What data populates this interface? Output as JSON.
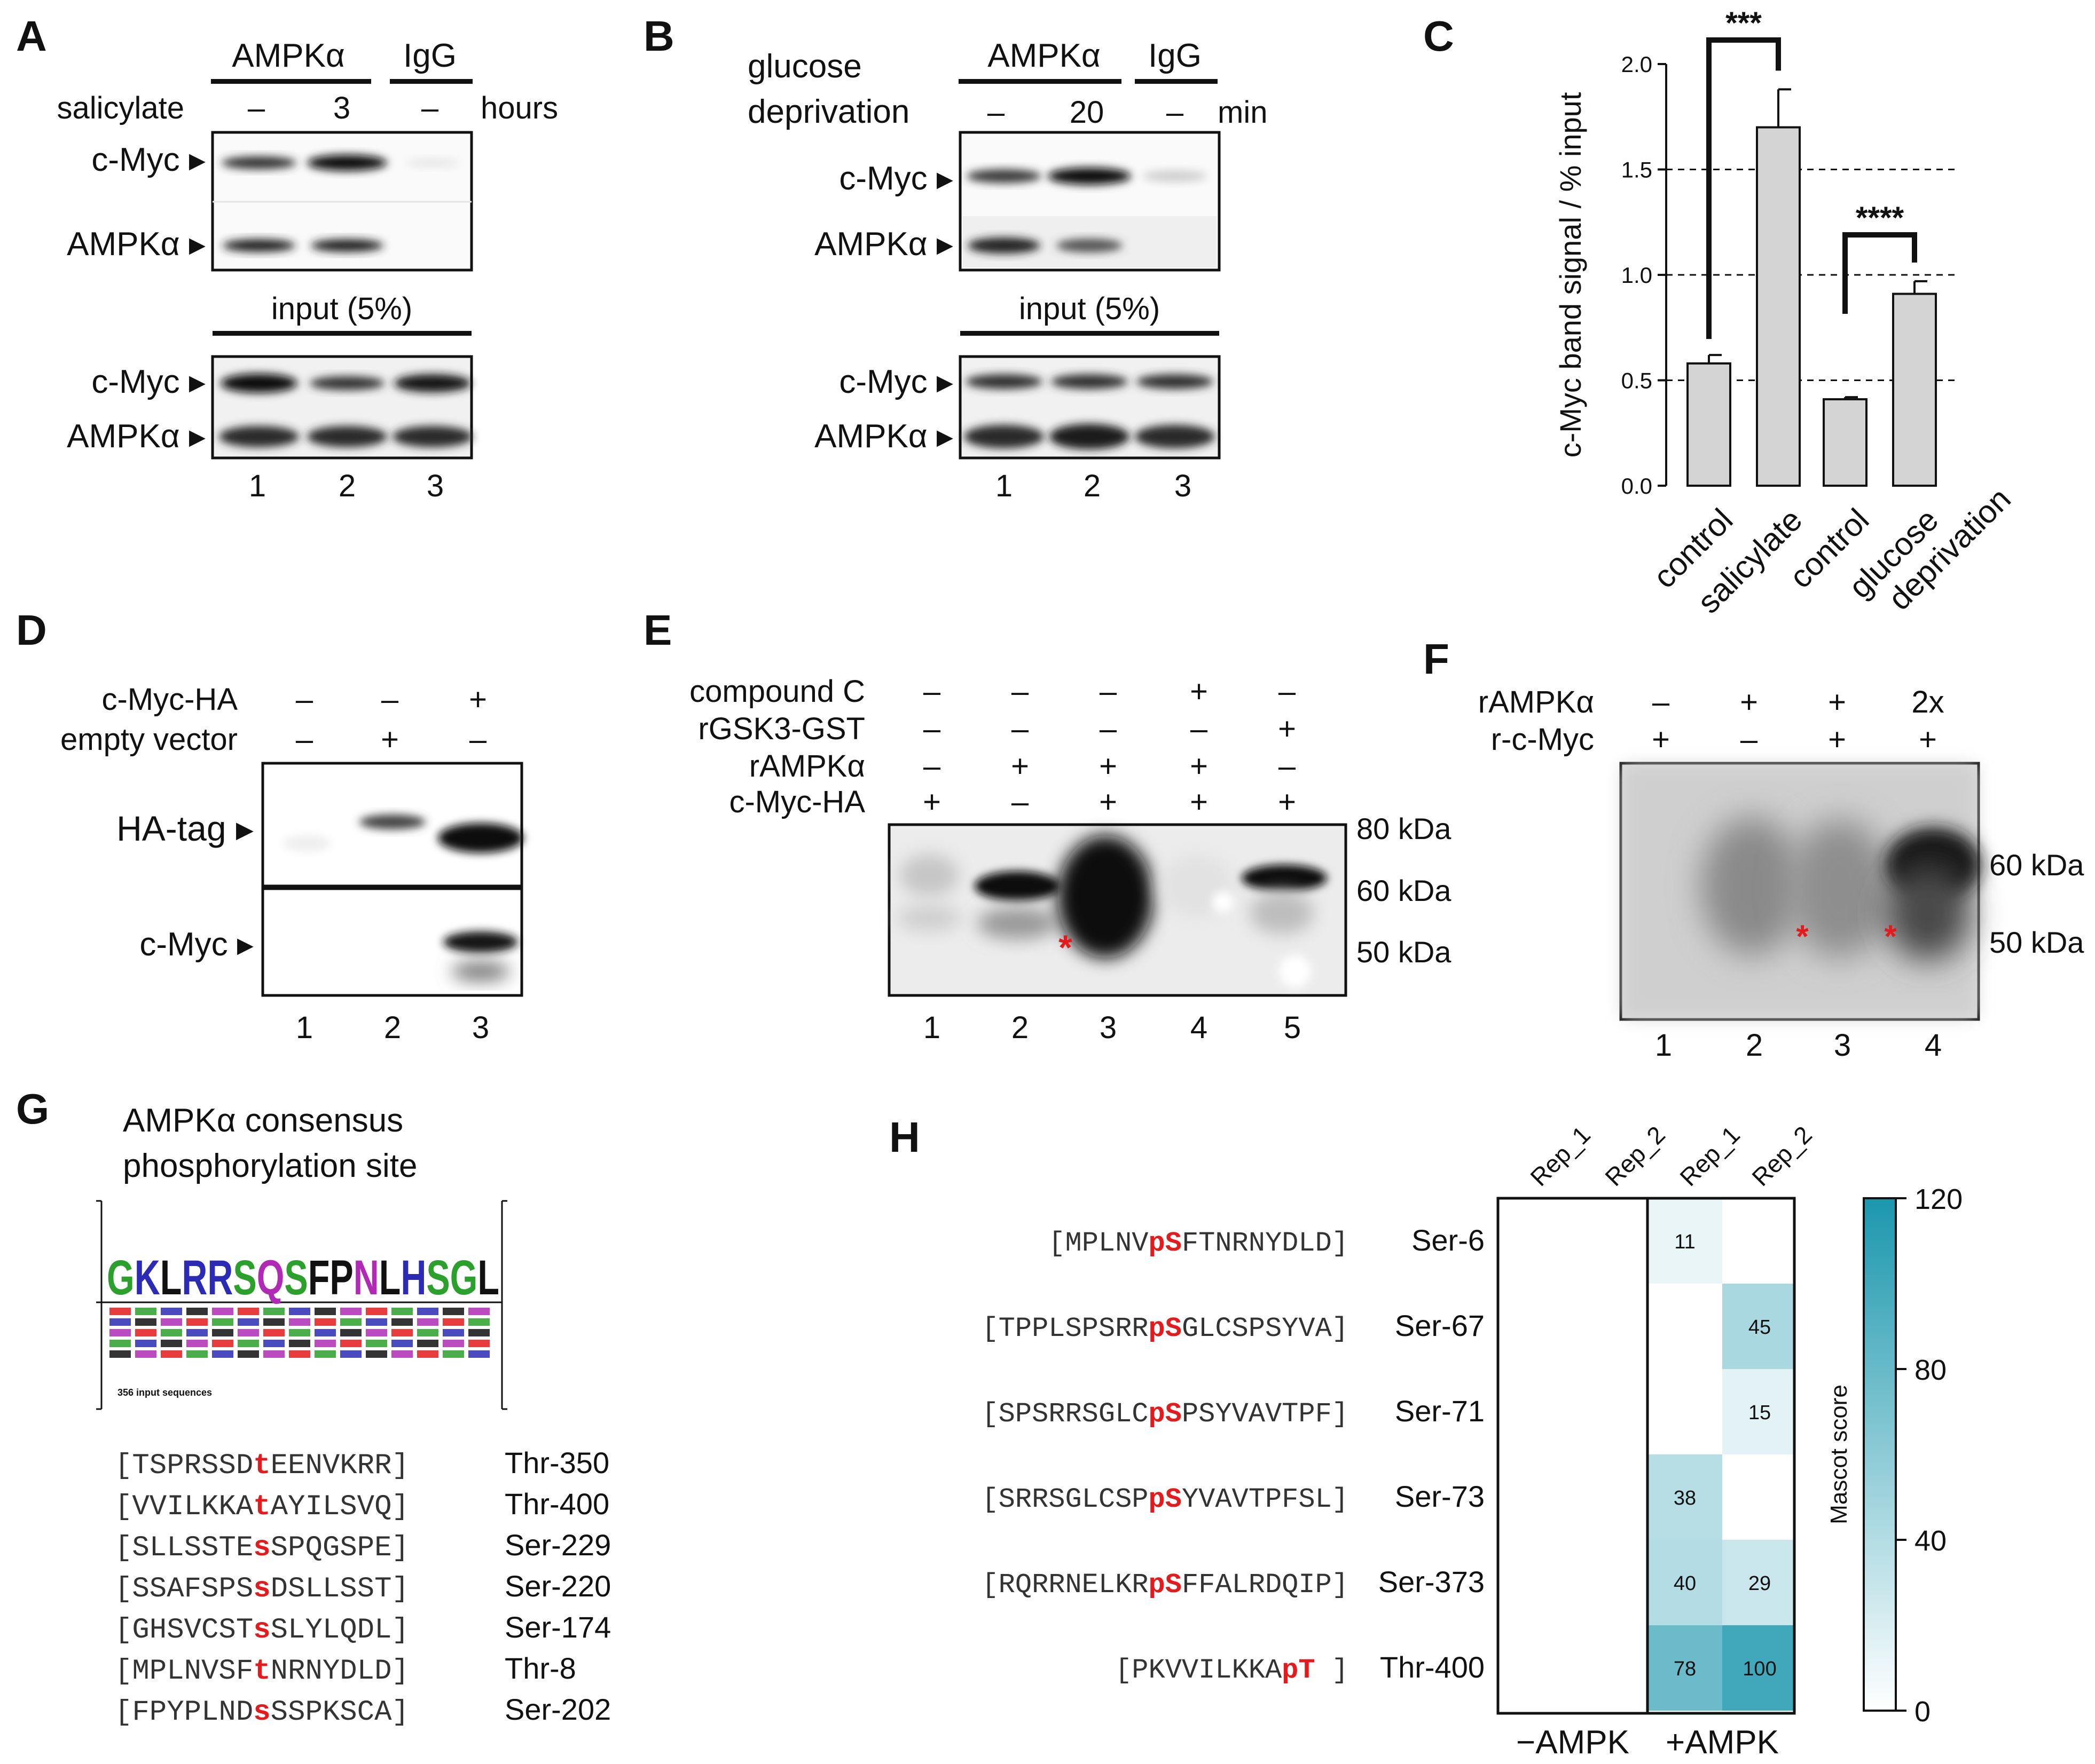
{
  "panels": {
    "A": {
      "letter": "A",
      "ip_headers": [
        "AMPKα",
        "IgG"
      ],
      "treatment_label": "salicylate",
      "treatment_values": [
        "–",
        "3",
        "–"
      ],
      "unit": "hours",
      "blot_labels": [
        "c-Myc ▸",
        "AMPKα ▸"
      ],
      "input_label": "input (5%)",
      "input_labels": [
        "c-Myc ▸",
        "AMPKα ▸"
      ],
      "lanes": [
        "1",
        "2",
        "3"
      ]
    },
    "B": {
      "letter": "B",
      "treatment_label_1": "glucose",
      "treatment_label_2": "deprivation",
      "ip_headers": [
        "AMPKα",
        "IgG"
      ],
      "treatment_values": [
        "–",
        "20",
        "–"
      ],
      "unit": "min",
      "blot_labels": [
        "c-Myc ▸",
        "AMPKα ▸"
      ],
      "input_label": "input (5%)",
      "input_labels": [
        "c-Myc ▸",
        "AMPKα ▸"
      ],
      "lanes": [
        "1",
        "2",
        "3"
      ]
    },
    "C": {
      "letter": "C",
      "significance": [
        "***",
        "****"
      ]
    },
    "D": {
      "letter": "D",
      "rows": [
        {
          "label": "c-Myc-HA",
          "values": [
            "–",
            "–",
            "+"
          ]
        },
        {
          "label": "empty vector",
          "values": [
            "–",
            "+",
            "–"
          ]
        }
      ],
      "blot_labels": [
        "HA-tag ▸",
        "c-Myc ▸"
      ],
      "lanes": [
        "1",
        "2",
        "3"
      ]
    },
    "E": {
      "letter": "E",
      "rows": [
        {
          "label": "compound C",
          "values": [
            "–",
            "–",
            "–",
            "+",
            "–"
          ]
        },
        {
          "label": "rGSK3-GST",
          "values": [
            "–",
            "–",
            "–",
            "–",
            "+"
          ]
        },
        {
          "label": "rAMPKα",
          "values": [
            "–",
            "+",
            "+",
            "+",
            "–"
          ]
        },
        {
          "label": "c-Myc-HA",
          "values": [
            "+",
            "–",
            "+",
            "+",
            "+"
          ]
        }
      ],
      "markers": [
        "80 kDa",
        "60 kDa",
        "50 kDa"
      ],
      "star": "*",
      "lanes": [
        "1",
        "2",
        "3",
        "4",
        "5"
      ]
    },
    "F": {
      "letter": "F",
      "rows": [
        {
          "label": "rAMPKα",
          "values": [
            "–",
            "+",
            "+",
            "2x"
          ]
        },
        {
          "label": "r-c-Myc",
          "values": [
            "+",
            "–",
            "+",
            "+"
          ]
        }
      ],
      "markers": [
        "60 kDa",
        "50 kDa"
      ],
      "star": "*",
      "lanes": [
        "1",
        "2",
        "3",
        "4"
      ]
    },
    "G": {
      "letter": "G",
      "title_1": "AMPKα consensus",
      "title_2": "phosphorylation site",
      "logo_caption": "356 input sequences",
      "logo_top": "GKLRRSQSFPNLHSGL",
      "sites": [
        {
          "pre": "[TSPRSSD",
          "res": "t",
          "post": "EENVKRR]",
          "site": "Thr-350"
        },
        {
          "pre": "[VVILKKA",
          "res": "t",
          "post": "AYILSVQ]",
          "site": "Thr-400"
        },
        {
          "pre": "[SLLSSTE",
          "res": "s",
          "post": "SPQGSPE]",
          "site": "Ser-229"
        },
        {
          "pre": "[SSAFSPS",
          "res": "s",
          "post": "DSLLSST]",
          "site": "Ser-220"
        },
        {
          "pre": "[GHSVCST",
          "res": "s",
          "post": "SLYLQDL]",
          "site": "Ser-174"
        },
        {
          "pre": "[MPLNVSF",
          "res": "t",
          "post": "NRNYDLD]",
          "site": "Thr-8"
        },
        {
          "pre": "[FPYPLND",
          "res": "s",
          "post": "SSPKSCA]",
          "site": "Ser-202"
        }
      ]
    },
    "H": {
      "letter": "H",
      "col_headers": [
        "Rep_1",
        "Rep_2",
        "Rep_1",
        "Rep_2"
      ],
      "peptides": [
        {
          "pre": "[MPLNV",
          "res": "pS",
          "post": "FTNRNYDLD]",
          "site": "Ser-6",
          "scores": [
            null,
            null,
            11,
            null
          ]
        },
        {
          "pre": "[TPPLSPSRR",
          "res": "pS",
          "post": "GLCSPSYVA]",
          "site": "Ser-67",
          "scores": [
            null,
            null,
            null,
            45
          ]
        },
        {
          "pre": "[SPSRRSGLC",
          "res": "pS",
          "post": "PSYVAVTPF]",
          "site": "Ser-71",
          "scores": [
            null,
            null,
            null,
            15
          ]
        },
        {
          "pre": "[SRRSGLCSP",
          "res": "pS",
          "post": "YVAVTPFSL]",
          "site": "Ser-73",
          "scores": [
            null,
            null,
            38,
            null
          ]
        },
        {
          "pre": "[RQRRNELKR",
          "res": "pS",
          "post": "FFALRDQIP]",
          "site": "Ser-373",
          "scores": [
            null,
            null,
            40,
            29
          ]
        },
        {
          "pre": "[PKVVILKKA",
          "res": "pT",
          "post": "]",
          "site": "Thr-400",
          "scores": [
            null,
            null,
            78,
            100
          ]
        }
      ],
      "groups": [
        "−AMPK",
        "+AMPK"
      ],
      "colorbar_label": "Mascot score",
      "colorbar_ticks": [
        "0",
        "40",
        "80",
        "120"
      ],
      "colors": {
        "low": "#ffffff",
        "high": "#1b97ad"
      }
    }
  },
  "chart_data": {
    "type": "bar",
    "categories": [
      "control",
      "salicylate",
      "control",
      "glucose deprivation"
    ],
    "values": [
      0.58,
      1.7,
      0.41,
      0.91
    ],
    "errors": [
      0.04,
      0.18,
      0.01,
      0.06
    ],
    "ylabel": "c-Myc band signal / % input",
    "ylim": [
      0,
      2.0
    ],
    "yticks": [
      "0.0",
      "0.5",
      "1.0",
      "1.5",
      "2.0"
    ],
    "reference_lines": [
      0.5,
      1.0,
      1.5
    ],
    "comparisons": [
      {
        "pair": [
          0,
          1
        ],
        "label": "***"
      },
      {
        "pair": [
          2,
          3
        ],
        "label": "****"
      }
    ]
  }
}
